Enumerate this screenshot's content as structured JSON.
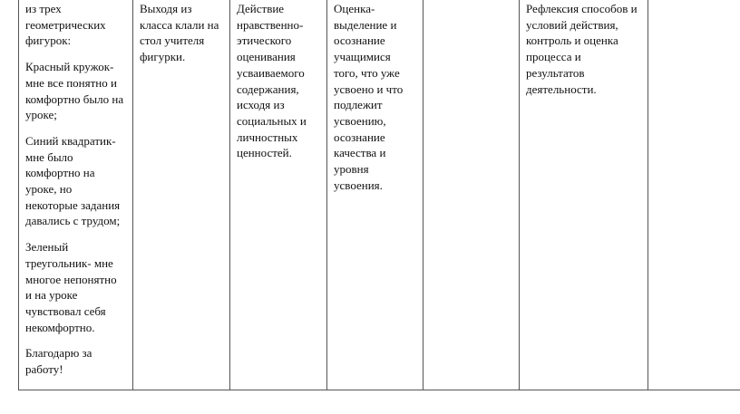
{
  "table": {
    "columns": [
      {
        "paragraphs": [
          [
            "из трех",
            "геометрических",
            "фигурок:"
          ],
          [
            "Красный кружок-",
            "мне все понятно и",
            "комфортно было на",
            "уроке;"
          ],
          [
            "Синий квадратик-",
            "мне было",
            "комфортно на",
            "уроке, но",
            "некоторые задания",
            "давались с трудом;"
          ],
          [
            "Зеленый",
            "треугольник- мне",
            "многое непонятно",
            "и на уроке",
            "чувствовал себя",
            "некомфортно."
          ],
          [
            "Благодарю за",
            "работу!"
          ]
        ]
      },
      {
        "paragraphs": [
          [
            "Выходя из",
            "класса клали на",
            "стол учителя",
            "фигурки."
          ]
        ]
      },
      {
        "paragraphs": [
          [
            "Действие",
            "нравственно-",
            "этического",
            "оценивания",
            "усваиваемого",
            "содержания,",
            "исходя из",
            "социальных и",
            "личностных",
            "ценностей."
          ]
        ]
      },
      {
        "paragraphs": [
          [
            "Оценка-",
            "выделение и",
            "осознание",
            "учащимися",
            "того, что уже",
            "усвоено и что",
            "подлежит",
            "усвоению,",
            "осознание",
            "качества и",
            "уровня",
            "усвоения."
          ]
        ]
      },
      {
        "paragraphs": []
      },
      {
        "paragraphs": [
          [
            "Рефлексия способов и",
            "условий действия,",
            "контроль и оценка",
            "процесса и",
            "результатов",
            "деятельности."
          ]
        ]
      },
      {
        "paragraphs": []
      }
    ]
  }
}
